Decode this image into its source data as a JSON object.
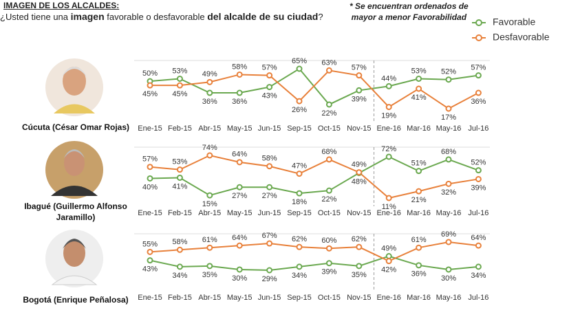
{
  "header": {
    "title": "IMAGEN DE LOS ALCALDES:",
    "subtitle": [
      "¿Usted tiene una ",
      "imagen",
      " favorable o desfavorable ",
      "del alcalde de su ciudad",
      "?"
    ],
    "note": [
      "*  Se encuentran ordenados de",
      "mayor a menor Favorabilidad"
    ]
  },
  "chart_data": [
    {
      "type": "line",
      "title": "Cúcuta (César Omar Rojas)",
      "categories": [
        "Ene-15",
        "Feb-15",
        "Abr-15",
        "May-15",
        "Jun-15",
        "Sep-15",
        "Oct-15",
        "Nov-15",
        "Ene-16",
        "Mar-16",
        "May-16",
        "Jul-16"
      ],
      "series": [
        {
          "name": "Favorable",
          "color": "#6aa84f",
          "values": [
            50,
            53,
            36,
            36,
            43,
            65,
            22,
            39,
            44,
            53,
            52,
            57
          ],
          "value_labels": [
            "50%",
            "53%",
            "36%",
            "36%",
            "43%",
            "65%",
            "22%",
            "39%",
            "44%",
            "53%",
            "52%",
            "57%"
          ]
        },
        {
          "name": "Desfavorable",
          "color": "#e8803a",
          "values": [
            45,
            45,
            49,
            58,
            57,
            26,
            63,
            57,
            19,
            41,
            17,
            36
          ],
          "value_labels": [
            "45%",
            "45%",
            "49%",
            "58%",
            "57%",
            "26%",
            "63%",
            "57%",
            "19%",
            "41%",
            "17%",
            "36%"
          ]
        }
      ]
    },
    {
      "type": "line",
      "title": "Ibagué (Guillermo Alfonso Jaramillo)",
      "categories": [
        "Ene-15",
        "Feb-15",
        "Abr-15",
        "May-15",
        "Jun-15",
        "Sep-15",
        "Oct-15",
        "Nov-15",
        "Ene-16",
        "Mar-16",
        "May-16",
        "Jul-16"
      ],
      "series": [
        {
          "name": "Favorable",
          "color": "#6aa84f",
          "values": [
            40,
            41,
            15,
            27,
            27,
            18,
            22,
            48,
            72,
            51,
            68,
            52
          ],
          "value_labels": [
            "40%",
            "41%",
            "15%",
            "27%",
            "27%",
            "18%",
            "22%",
            "48%",
            "72%",
            "51%",
            "68%",
            "52%"
          ]
        },
        {
          "name": "Desfavorable",
          "color": "#e8803a",
          "values": [
            57,
            53,
            74,
            64,
            58,
            47,
            68,
            49,
            11,
            21,
            32,
            39
          ],
          "value_labels": [
            "57%",
            "53%",
            "74%",
            "64%",
            "58%",
            "47%",
            "68%",
            "49%",
            "11%",
            "21%",
            "32%",
            "39%"
          ]
        }
      ]
    },
    {
      "type": "line",
      "title": "Bogotá (Enrique Peñalosa)",
      "categories": [
        "Ene-15",
        "Feb-15",
        "Abr-15",
        "May-15",
        "Jun-15",
        "Sep-15",
        "Oct-15",
        "Nov-15",
        "Ene-16",
        "Mar-16",
        "May-16",
        "Jul-16"
      ],
      "series": [
        {
          "name": "Favorable",
          "color": "#6aa84f",
          "values": [
            43,
            34,
            35,
            30,
            29,
            34,
            39,
            35,
            49,
            36,
            30,
            34
          ],
          "value_labels": [
            "43%",
            "34%",
            "35%",
            "30%",
            "29%",
            "34%",
            "39%",
            "35%",
            "49%",
            "36%",
            "30%",
            "34%"
          ]
        },
        {
          "name": "Desfavorable",
          "color": "#e8803a",
          "values": [
            55,
            58,
            61,
            64,
            67,
            62,
            60,
            62,
            42,
            61,
            69,
            64
          ],
          "value_labels": [
            "55%",
            "58%",
            "61%",
            "64%",
            "67%",
            "62%",
            "60%",
            "62%",
            "42%",
            "61%",
            "69%",
            "64%"
          ]
        }
      ]
    }
  ]
}
